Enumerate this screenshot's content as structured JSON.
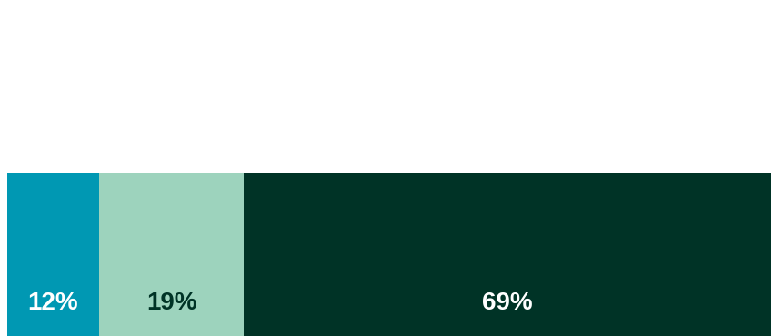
{
  "chart_data": {
    "type": "bar",
    "orientation": "horizontal",
    "stacked": true,
    "categories": [
      null
    ],
    "series": [
      {
        "color": "#0098b3",
        "values": [
          12
        ],
        "value_labels": [
          "12%"
        ]
      },
      {
        "color": "#9dd3bd",
        "values": [
          19
        ],
        "value_labels": [
          "19%"
        ]
      },
      {
        "color": "#003326",
        "values": [
          69
        ],
        "value_labels": [
          "69%"
        ]
      }
    ],
    "xlim": [
      0,
      100
    ],
    "xticks": [],
    "data_labels": true,
    "tick_labels": false,
    "grid": false
  }
}
